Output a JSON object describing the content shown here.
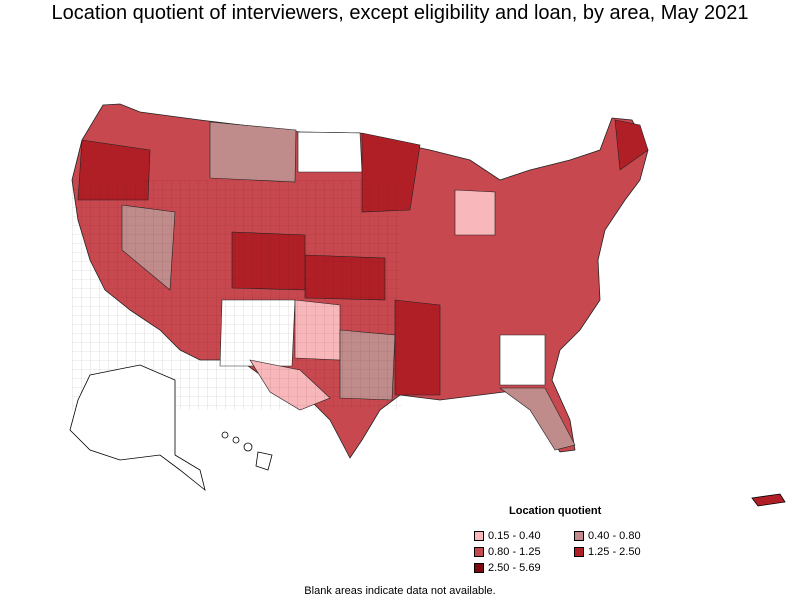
{
  "title": "Location quotient of interviewers, except eligibility and loan, by area, May 2021",
  "legend": {
    "title": "Location quotient",
    "items": [
      {
        "label": "0.15 - 0.40",
        "color": "#f8b7ba"
      },
      {
        "label": "0.40 - 0.80",
        "color": "#c08b8b"
      },
      {
        "label": "0.80 - 1.25",
        "color": "#c8484f"
      },
      {
        "label": "1.25 - 2.50",
        "color": "#b11f26"
      },
      {
        "label": "2.50 - 5.69",
        "color": "#7a0a0e"
      }
    ]
  },
  "note": "Blank areas indicate data not available."
}
